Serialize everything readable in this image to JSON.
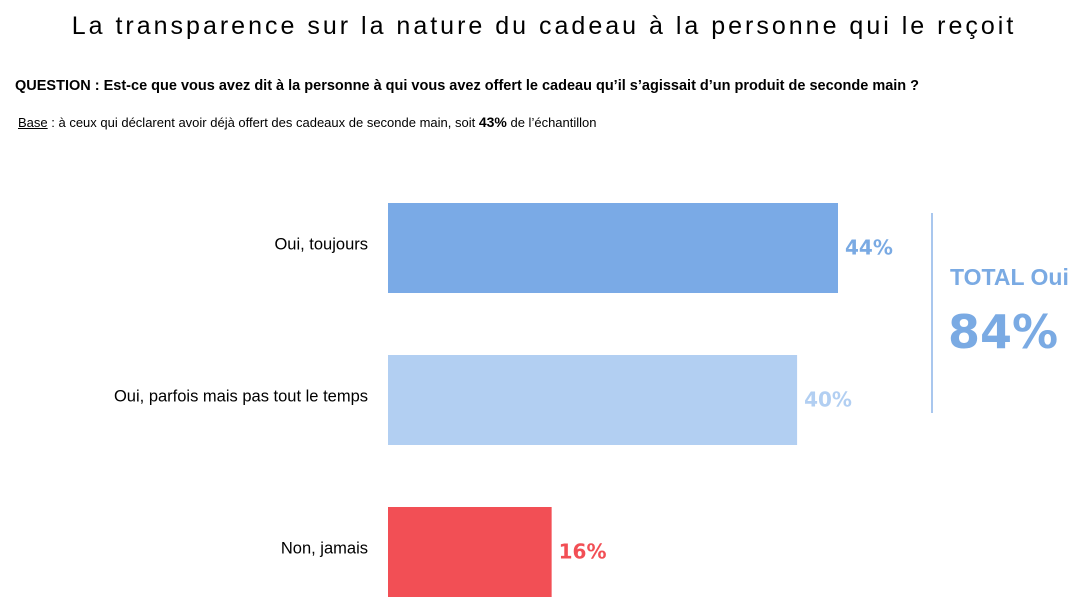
{
  "header": {
    "title": "La transparence sur la nature du cadeau à la personne qui le reçoit",
    "question": "QUESTION : Est-ce que vous avez dit à la personne à qui vous avez offert le cadeau qu’il s’agissait d’un produit de seconde main ?",
    "base_label": "Base",
    "base_text": " : à ceux qui déclarent avoir déjà offert des cadeaux de seconde main, soit ",
    "base_pct": "43%",
    "base_suffix": " de l’échantillon"
  },
  "total": {
    "label": "TOTAL Oui",
    "value": "84%",
    "color": "#7aaae3"
  },
  "chart_data": {
    "type": "bar",
    "orientation": "horizontal",
    "categories": [
      "Oui, toujours",
      "Oui, parfois mais pas tout le temps",
      "Non, jamais"
    ],
    "values": [
      44,
      40,
      16
    ],
    "value_labels": [
      "44%",
      "40%",
      "16%"
    ],
    "unit": "%",
    "colors": [
      "#7aaae6",
      "#b2cff2",
      "#f24f55"
    ],
    "label_colors": [
      "#7aaae3",
      "#b2cff2",
      "#f24f55"
    ],
    "title": "",
    "xlabel": "",
    "ylabel": "",
    "xlim": [
      0,
      100
    ],
    "grid": false,
    "legend": "none"
  }
}
